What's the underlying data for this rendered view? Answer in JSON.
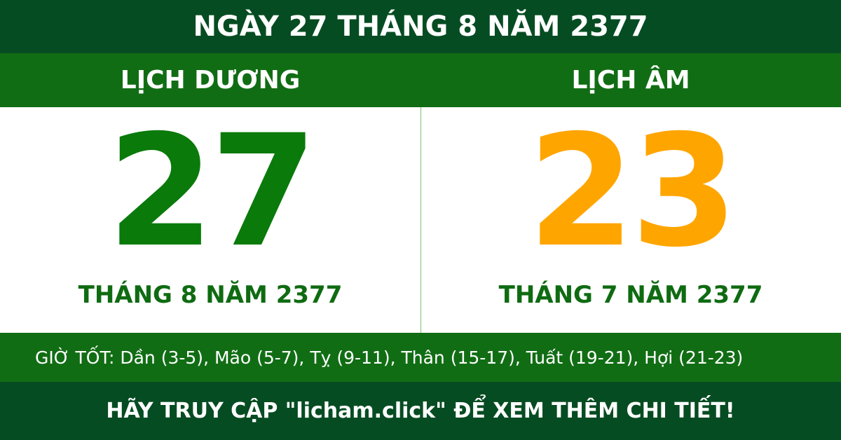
{
  "header": {
    "title": "NGÀY 27 THÁNG 8 NĂM 2377"
  },
  "solar": {
    "label": "LỊCH DƯƠNG",
    "day": "27",
    "month_year": "THÁNG 8 NĂM 2377"
  },
  "lunar": {
    "label": "LỊCH ÂM",
    "day": "23",
    "month_year": "THÁNG 7 NĂM 2377"
  },
  "good_hours": "GIỜ TỐT: Dần (3-5), Mão (5-7), Tỵ (9-11), Thân (15-17), Tuất (19-21), Hợi (21-23)",
  "footer": "HÃY TRUY CẬP \"licham.click\" ĐỂ XEM THÊM CHI TIẾT!"
}
